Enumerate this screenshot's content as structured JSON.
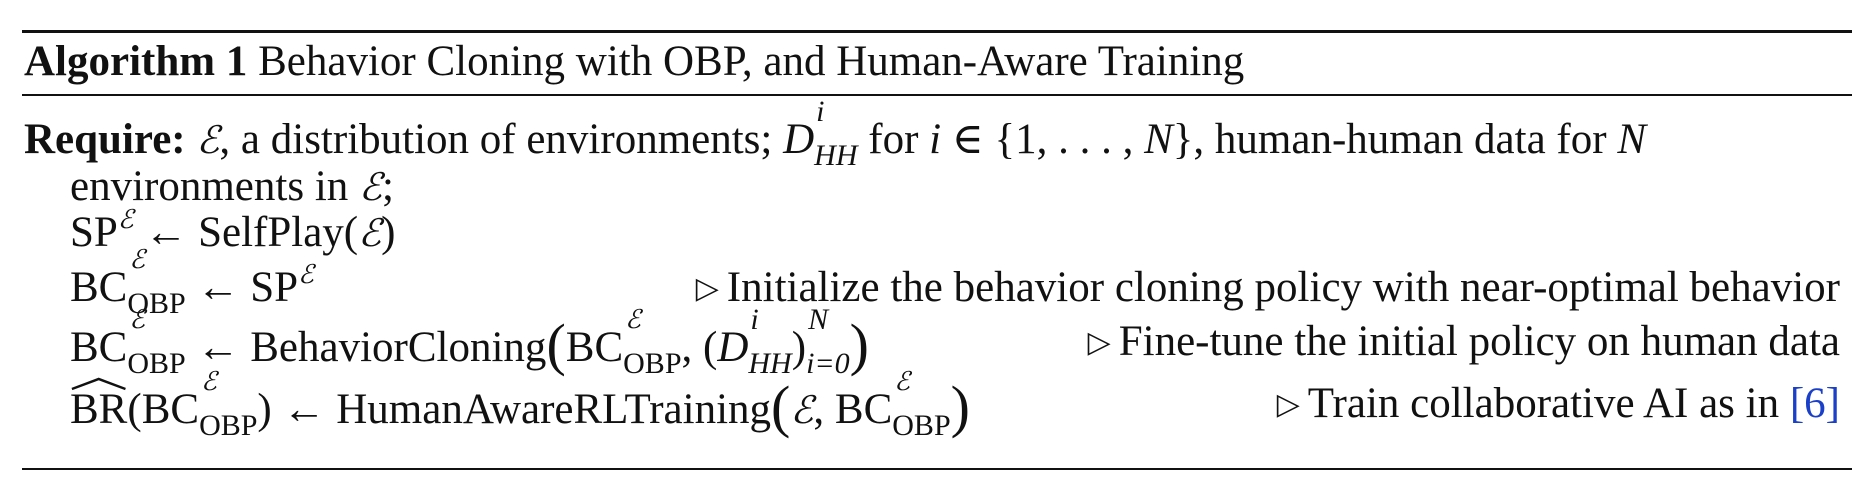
{
  "algorithm": {
    "label": "Algorithm 1",
    "title": "Behavior Cloning with OBP, and Human-Aware Training"
  },
  "require": {
    "keyword": "Require:",
    "env_symbol": "ℰ",
    "text1": ", a distribution of environments;",
    "data_symbol": "D",
    "data_sup": "i",
    "data_sub": "HH",
    "text2": "for",
    "i_var": "i",
    "set_text": "∈ {1, . . . , ",
    "n_var": "N",
    "set_close": "}",
    "text3": ", human-human data for",
    "n_var2": "N",
    "line2": "environments in",
    "env_symbol2": "ℰ",
    "line2_end": ";"
  },
  "steps": [
    {
      "code": {
        "lhs": "SP",
        "lhs_sup": "ℰ",
        "arrow": "←",
        "rhs": "SelfPlay(",
        "rhs_env": "ℰ",
        "rhs_close": ")"
      }
    },
    {
      "code": {
        "lhs": "BC",
        "lhs_sup": "ℰ",
        "lhs_sub": "OBP",
        "arrow": "←",
        "rhs": "SP",
        "rhs_sup": "ℰ"
      },
      "comment": "Initialize the behavior cloning policy with near-optimal behavior"
    },
    {
      "code": {
        "lhs": "BC",
        "lhs_sup": "ℰ",
        "lhs_sub": "OBP",
        "arrow": "←",
        "fn": "BehaviorCloning",
        "arg1": "BC",
        "arg1_sup": "ℰ",
        "arg1_sub": "OBP",
        "arg2_open": "(",
        "arg2_sym": "D",
        "arg2_sup": "i",
        "arg2_sub": "HH",
        "arg2_close": ")",
        "range_sup": "N",
        "range_sub": "i=0"
      },
      "comment": "Fine-tune the initial policy on human data"
    },
    {
      "code": {
        "lhs_hat": "BR",
        "lhs_open": "(BC",
        "lhs_sup": "ℰ",
        "lhs_sub": "OBP",
        "lhs_close": ")",
        "arrow": "←",
        "fn": "HumanAwareRLTraining",
        "arg_env": "ℰ",
        "arg_sep": ", BC",
        "arg_sup": "ℰ",
        "arg_sub": "OBP"
      },
      "comment": "Train collaborative AI as in",
      "cite": "[6]"
    }
  ],
  "comment_marker": "▷"
}
